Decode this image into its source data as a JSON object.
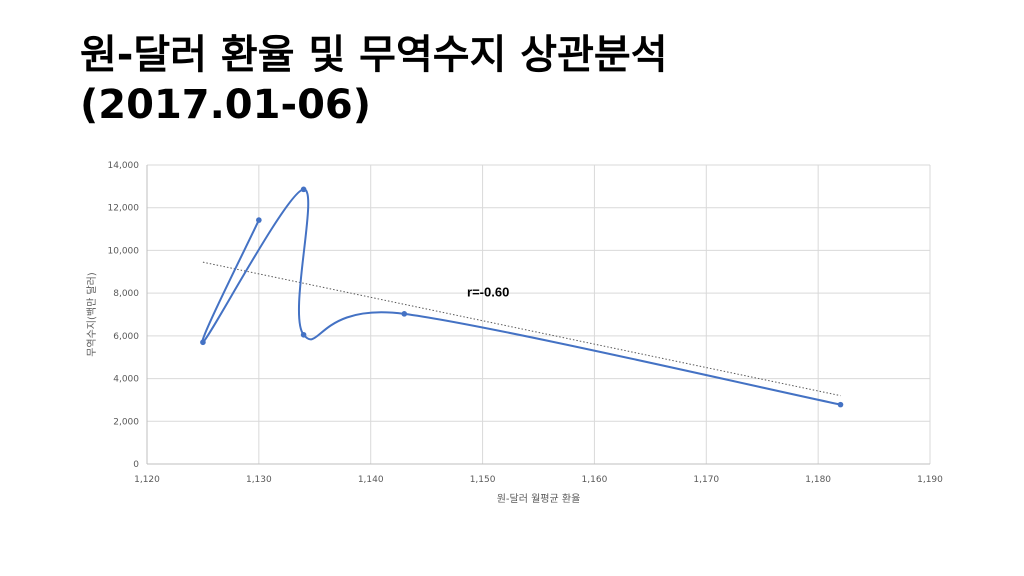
{
  "slide": {
    "title_line1": "원-달러 환율 및 무역수지 상관분석",
    "title_line2": "(2017.01-06)"
  },
  "chart_data": {
    "type": "scatter",
    "title": "",
    "xlabel": "원-달러 월평균 환율",
    "ylabel": "무역수지(백만 달러)",
    "xlim": [
      1120,
      1190
    ],
    "ylim": [
      0,
      14000
    ],
    "x_ticks": [
      1120,
      1130,
      1140,
      1150,
      1160,
      1170,
      1180,
      1190
    ],
    "x_tick_labels": [
      "1,120",
      "1,130",
      "1,140",
      "1,150",
      "1,160",
      "1,170",
      "1,180",
      "1,190"
    ],
    "y_ticks": [
      0,
      2000,
      4000,
      6000,
      8000,
      10000,
      12000,
      14000
    ],
    "y_tick_labels": [
      "0",
      "2,000",
      "4,000",
      "6,000",
      "8,000",
      "10,000",
      "12,000",
      "14,000"
    ],
    "grid": true,
    "series": [
      {
        "color": "#4472C4",
        "connected": "smooth",
        "points": [
          {
            "x": 1182,
            "y": 2780
          },
          {
            "x": 1143,
            "y": 7030
          },
          {
            "x": 1134,
            "y": 6050
          },
          {
            "x": 1134,
            "y": 12860
          },
          {
            "x": 1125,
            "y": 5700
          },
          {
            "x": 1130,
            "y": 11420
          }
        ]
      }
    ],
    "trendline": {
      "style": "dotted",
      "color": "#595959",
      "from": {
        "x": 1125,
        "y": 9450
      },
      "to": {
        "x": 1182,
        "y": 3200
      }
    },
    "annotation": {
      "text": "r=-0.60",
      "x": 1150.5,
      "y": 7850
    }
  }
}
